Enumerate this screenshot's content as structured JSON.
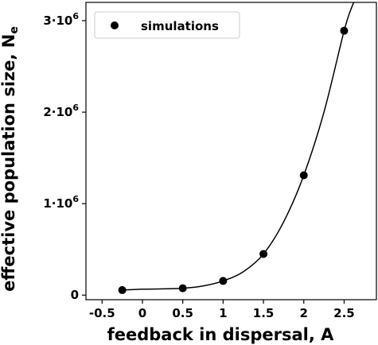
{
  "chart_data": {
    "type": "scatter",
    "xlabel": "feedback in dispersal, A",
    "ylabel_main": "effective population size, N",
    "ylabel_sub": "e",
    "xlim": [
      -0.7,
      2.9
    ],
    "ylim": [
      -50000,
      3200000
    ],
    "x_ticks": [
      {
        "v": -0.5,
        "label": "-0.5"
      },
      {
        "v": 0,
        "label": "0"
      },
      {
        "v": 0.5,
        "label": "0.5"
      },
      {
        "v": 1,
        "label": "1"
      },
      {
        "v": 1.5,
        "label": "1.5"
      },
      {
        "v": 2,
        "label": "2"
      },
      {
        "v": 2.5,
        "label": "2.5"
      }
    ],
    "y_ticks": [
      {
        "v": 0,
        "label": "0",
        "exp": ""
      },
      {
        "v": 1000000,
        "label": "1·10",
        "exp": "6"
      },
      {
        "v": 2000000,
        "label": "2·10",
        "exp": "6"
      },
      {
        "v": 3000000,
        "label": "3·10",
        "exp": "6"
      }
    ],
    "series": [
      {
        "name": "simulations",
        "kind": "points",
        "x": [
          -0.25,
          0.5,
          1.0,
          1.5,
          2.0,
          2.5
        ],
        "y": [
          55000,
          75000,
          155000,
          450000,
          1310000,
          2890000
        ]
      },
      {
        "kind": "line",
        "x": [
          -0.25,
          0,
          0.25,
          0.5,
          0.75,
          1.0,
          1.25,
          1.5,
          1.75,
          2.0,
          2.25,
          2.5,
          2.6,
          2.65
        ],
        "y": [
          55000,
          65000,
          68000,
          75000,
          100000,
          155000,
          255000,
          450000,
          800000,
          1310000,
          2000000,
          2890000,
          3160000,
          3250000
        ]
      }
    ],
    "legend": {
      "position": "top-left",
      "label": "simulations"
    },
    "grid": false
  }
}
